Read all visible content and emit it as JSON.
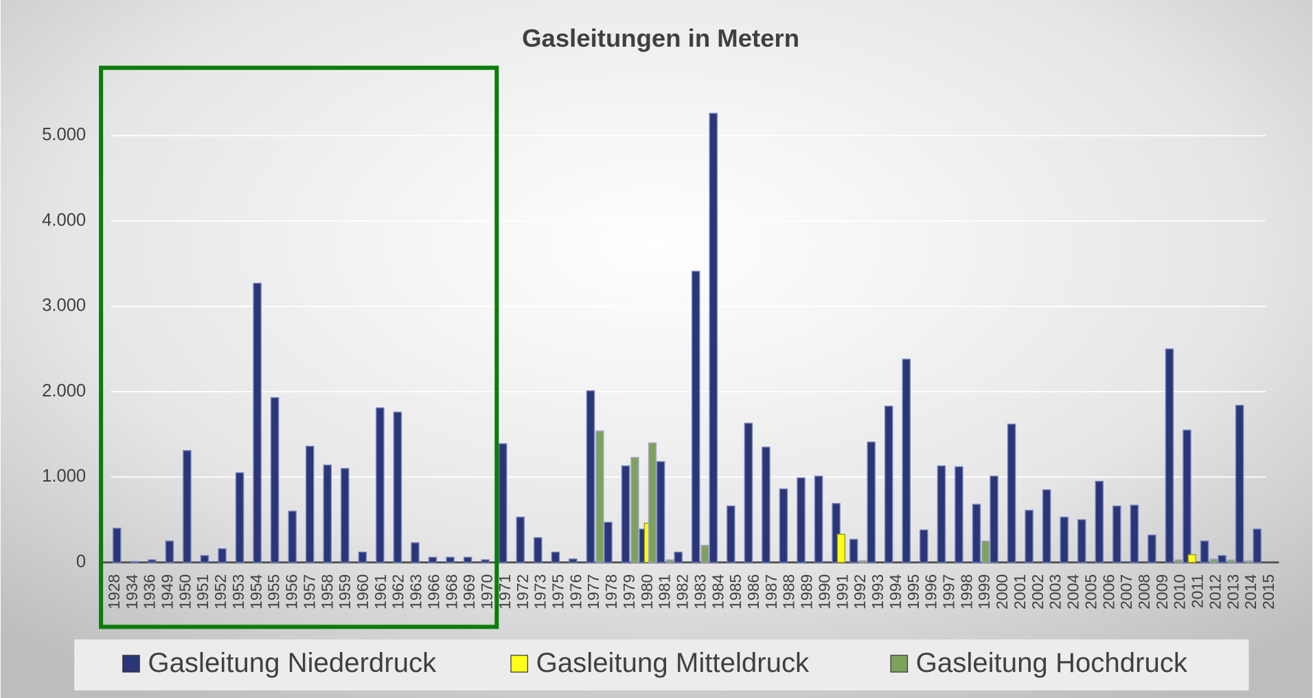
{
  "chart_data": {
    "type": "bar",
    "title": "Gasleitungen in Metern",
    "categories": [
      "1928",
      "1934",
      "1936",
      "1949",
      "1950",
      "1951",
      "1952",
      "1953",
      "1954",
      "1955",
      "1956",
      "1957",
      "1958",
      "1959",
      "1960",
      "1961",
      "1962",
      "1963",
      "1966",
      "1968",
      "1969",
      "1970",
      "1971",
      "1972",
      "1973",
      "1975",
      "1976",
      "1977",
      "1978",
      "1979",
      "1980",
      "1981",
      "1982",
      "1983",
      "1984",
      "1985",
      "1986",
      "1987",
      "1988",
      "1989",
      "1990",
      "1991",
      "1992",
      "1993",
      "1994",
      "1995",
      "1996",
      "1997",
      "1998",
      "1999",
      "2000",
      "2001",
      "2002",
      "2003",
      "2004",
      "2005",
      "2006",
      "2007",
      "2008",
      "2009",
      "2010",
      "2011",
      "2012",
      "2013",
      "2014",
      "2015"
    ],
    "series": [
      {
        "name": "Gasleitung Niederdruck",
        "color": "#2b3677",
        "values": [
          400,
          10,
          30,
          250,
          1310,
          80,
          160,
          1050,
          3270,
          1930,
          600,
          1360,
          1140,
          1100,
          120,
          1810,
          1760,
          230,
          60,
          60,
          60,
          30,
          1390,
          530,
          290,
          120,
          40,
          2010,
          470,
          1130,
          390,
          1180,
          120,
          3410,
          5260,
          660,
          1630,
          1350,
          860,
          990,
          1010,
          690,
          270,
          1410,
          1830,
          2380,
          380,
          1130,
          1120,
          680,
          1010,
          1620,
          610,
          850,
          530,
          500,
          950,
          660,
          670,
          320,
          2500,
          1550,
          250,
          80,
          1840,
          390
        ]
      },
      {
        "name": "Gasleitung Mitteldruck",
        "color": "#ffff1a",
        "values": [
          null,
          null,
          null,
          null,
          null,
          null,
          null,
          null,
          null,
          null,
          null,
          null,
          null,
          null,
          null,
          null,
          null,
          null,
          null,
          null,
          null,
          null,
          null,
          null,
          null,
          null,
          null,
          null,
          null,
          null,
          460,
          null,
          null,
          null,
          null,
          null,
          null,
          null,
          null,
          null,
          null,
          330,
          null,
          null,
          null,
          null,
          null,
          null,
          null,
          null,
          null,
          null,
          null,
          null,
          null,
          null,
          null,
          null,
          null,
          null,
          null,
          90,
          null,
          null,
          null,
          null
        ]
      },
      {
        "name": "Gasleitung Hochdruck",
        "color": "#7ea25c",
        "values": [
          null,
          null,
          null,
          null,
          null,
          null,
          null,
          null,
          null,
          null,
          null,
          null,
          null,
          null,
          null,
          null,
          null,
          null,
          null,
          null,
          null,
          null,
          null,
          null,
          null,
          null,
          null,
          1540,
          null,
          1230,
          1400,
          30,
          null,
          200,
          null,
          null,
          null,
          null,
          null,
          null,
          null,
          null,
          20,
          null,
          null,
          null,
          null,
          null,
          null,
          250,
          null,
          null,
          null,
          null,
          null,
          null,
          null,
          null,
          null,
          null,
          30,
          null,
          40,
          30,
          20,
          null
        ]
      }
    ],
    "ylim": [
      0,
      5500
    ],
    "yticks": [
      0,
      {
        "value": 1000,
        "label": "1.000"
      },
      {
        "value": 2000,
        "label": "2.000"
      },
      {
        "value": 3000,
        "label": "3.000"
      },
      {
        "value": 4000,
        "label": "4.000"
      },
      {
        "value": 5000,
        "label": "5.000"
      }
    ],
    "grid": true,
    "legend": "bottom"
  }
}
